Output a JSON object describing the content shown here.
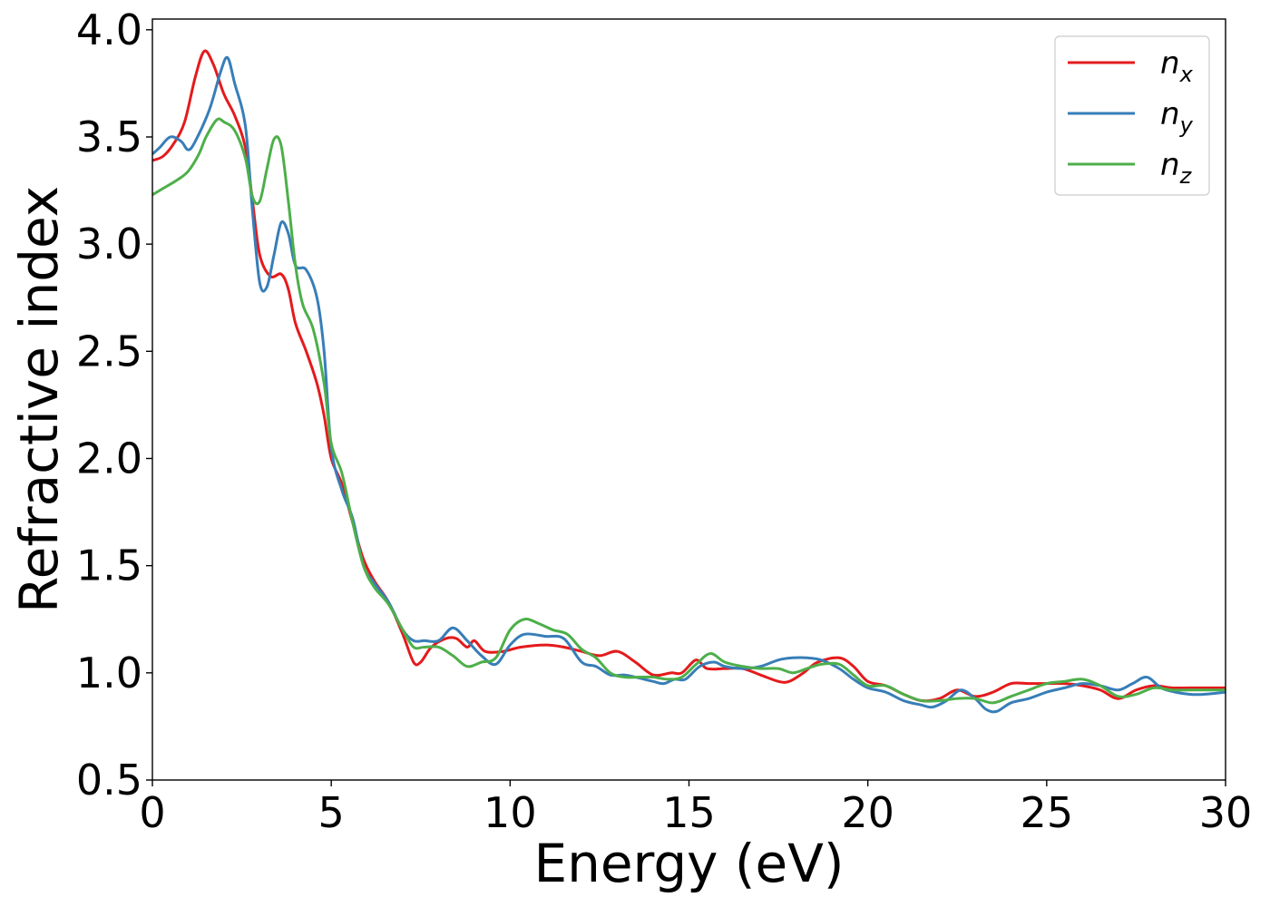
{
  "chart_data": {
    "type": "line",
    "xlabel": "Energy (eV)",
    "ylabel": "Refractive index",
    "xlim": [
      0,
      30
    ],
    "ylim": [
      0.5,
      4.05
    ],
    "xticks": [
      "0",
      "5",
      "10",
      "15",
      "20",
      "25",
      "30"
    ],
    "yticks": [
      "0.5",
      "1.0",
      "1.5",
      "2.0",
      "2.5",
      "3.0",
      "3.5",
      "4.0"
    ],
    "grid": false,
    "legend_position": "top-right",
    "series": [
      {
        "name": "n",
        "subscript": "x",
        "color": "#e41a1c",
        "points": [
          [
            0,
            3.39
          ],
          [
            0.3,
            3.41
          ],
          [
            0.6,
            3.47
          ],
          [
            0.9,
            3.57
          ],
          [
            1.2,
            3.78
          ],
          [
            1.45,
            3.9
          ],
          [
            1.7,
            3.84
          ],
          [
            2.0,
            3.7
          ],
          [
            2.3,
            3.6
          ],
          [
            2.6,
            3.45
          ],
          [
            2.8,
            3.2
          ],
          [
            3.0,
            2.95
          ],
          [
            3.3,
            2.85
          ],
          [
            3.6,
            2.86
          ],
          [
            3.8,
            2.79
          ],
          [
            4.0,
            2.63
          ],
          [
            4.3,
            2.5
          ],
          [
            4.6,
            2.35
          ],
          [
            4.8,
            2.2
          ],
          [
            5.0,
            2.0
          ],
          [
            5.3,
            1.88
          ],
          [
            5.6,
            1.7
          ],
          [
            5.9,
            1.53
          ],
          [
            6.2,
            1.43
          ],
          [
            6.6,
            1.33
          ],
          [
            7.0,
            1.18
          ],
          [
            7.3,
            1.05
          ],
          [
            7.5,
            1.05
          ],
          [
            7.8,
            1.12
          ],
          [
            8.2,
            1.16
          ],
          [
            8.5,
            1.16
          ],
          [
            8.8,
            1.12
          ],
          [
            9.0,
            1.15
          ],
          [
            9.3,
            1.1
          ],
          [
            9.8,
            1.1
          ],
          [
            10.3,
            1.12
          ],
          [
            11.0,
            1.13
          ],
          [
            11.5,
            1.12
          ],
          [
            12.0,
            1.1
          ],
          [
            12.5,
            1.08
          ],
          [
            13.0,
            1.1
          ],
          [
            13.5,
            1.05
          ],
          [
            14.0,
            0.99
          ],
          [
            14.5,
            1.0
          ],
          [
            14.8,
            1.0
          ],
          [
            15.2,
            1.06
          ],
          [
            15.5,
            1.02
          ],
          [
            16.0,
            1.02
          ],
          [
            16.5,
            1.02
          ],
          [
            17.0,
            0.99
          ],
          [
            17.5,
            0.96
          ],
          [
            17.8,
            0.96
          ],
          [
            18.2,
            1.0
          ],
          [
            18.6,
            1.05
          ],
          [
            19.2,
            1.07
          ],
          [
            19.6,
            1.03
          ],
          [
            20.0,
            0.96
          ],
          [
            20.5,
            0.94
          ],
          [
            21.0,
            0.9
          ],
          [
            21.5,
            0.87
          ],
          [
            22.0,
            0.88
          ],
          [
            22.5,
            0.92
          ],
          [
            23.0,
            0.89
          ],
          [
            23.5,
            0.91
          ],
          [
            24.0,
            0.95
          ],
          [
            24.5,
            0.95
          ],
          [
            25.0,
            0.95
          ],
          [
            25.5,
            0.95
          ],
          [
            26.0,
            0.94
          ],
          [
            26.5,
            0.92
          ],
          [
            27.0,
            0.88
          ],
          [
            27.5,
            0.92
          ],
          [
            28.0,
            0.94
          ],
          [
            28.5,
            0.93
          ],
          [
            29.0,
            0.93
          ],
          [
            29.5,
            0.93
          ],
          [
            30.0,
            0.93
          ]
        ]
      },
      {
        "name": "n",
        "subscript": "y",
        "color": "#377eb8",
        "points": [
          [
            0,
            3.42
          ],
          [
            0.2,
            3.45
          ],
          [
            0.5,
            3.5
          ],
          [
            0.8,
            3.48
          ],
          [
            1.0,
            3.44
          ],
          [
            1.2,
            3.48
          ],
          [
            1.6,
            3.63
          ],
          [
            1.9,
            3.8
          ],
          [
            2.1,
            3.87
          ],
          [
            2.3,
            3.75
          ],
          [
            2.6,
            3.55
          ],
          [
            2.8,
            3.15
          ],
          [
            3.0,
            2.82
          ],
          [
            3.2,
            2.8
          ],
          [
            3.4,
            2.95
          ],
          [
            3.6,
            3.1
          ],
          [
            3.8,
            3.05
          ],
          [
            4.0,
            2.9
          ],
          [
            4.3,
            2.88
          ],
          [
            4.6,
            2.75
          ],
          [
            4.8,
            2.5
          ],
          [
            5.0,
            2.05
          ],
          [
            5.3,
            1.85
          ],
          [
            5.6,
            1.72
          ],
          [
            5.9,
            1.5
          ],
          [
            6.2,
            1.42
          ],
          [
            6.6,
            1.33
          ],
          [
            7.0,
            1.2
          ],
          [
            7.3,
            1.15
          ],
          [
            7.6,
            1.15
          ],
          [
            8.0,
            1.15
          ],
          [
            8.4,
            1.21
          ],
          [
            8.8,
            1.15
          ],
          [
            9.2,
            1.08
          ],
          [
            9.6,
            1.04
          ],
          [
            10.0,
            1.13
          ],
          [
            10.4,
            1.18
          ],
          [
            11.0,
            1.17
          ],
          [
            11.5,
            1.16
          ],
          [
            12.0,
            1.05
          ],
          [
            12.4,
            1.03
          ],
          [
            12.8,
            0.99
          ],
          [
            13.2,
            0.99
          ],
          [
            13.5,
            0.98
          ],
          [
            14.0,
            0.96
          ],
          [
            14.3,
            0.95
          ],
          [
            14.6,
            0.97
          ],
          [
            14.9,
            0.97
          ],
          [
            15.3,
            1.03
          ],
          [
            15.7,
            1.05
          ],
          [
            16.0,
            1.03
          ],
          [
            16.5,
            1.02
          ],
          [
            17.0,
            1.03
          ],
          [
            17.5,
            1.06
          ],
          [
            17.9,
            1.07
          ],
          [
            18.3,
            1.07
          ],
          [
            18.7,
            1.06
          ],
          [
            19.2,
            1.02
          ],
          [
            19.6,
            0.97
          ],
          [
            20.0,
            0.93
          ],
          [
            20.5,
            0.91
          ],
          [
            21.0,
            0.87
          ],
          [
            21.5,
            0.85
          ],
          [
            21.8,
            0.84
          ],
          [
            22.2,
            0.87
          ],
          [
            22.6,
            0.92
          ],
          [
            23.0,
            0.88
          ],
          [
            23.3,
            0.83
          ],
          [
            23.6,
            0.82
          ],
          [
            24.0,
            0.86
          ],
          [
            24.5,
            0.88
          ],
          [
            25.0,
            0.91
          ],
          [
            25.5,
            0.93
          ],
          [
            26.0,
            0.95
          ],
          [
            26.5,
            0.94
          ],
          [
            27.0,
            0.92
          ],
          [
            27.4,
            0.95
          ],
          [
            27.8,
            0.98
          ],
          [
            28.2,
            0.93
          ],
          [
            28.6,
            0.91
          ],
          [
            29.0,
            0.9
          ],
          [
            29.4,
            0.9
          ],
          [
            30.0,
            0.91
          ]
        ]
      },
      {
        "name": "n",
        "subscript": "z",
        "color": "#4daf4a",
        "points": [
          [
            0,
            3.23
          ],
          [
            0.3,
            3.26
          ],
          [
            0.7,
            3.3
          ],
          [
            1.0,
            3.34
          ],
          [
            1.3,
            3.42
          ],
          [
            1.5,
            3.5
          ],
          [
            1.8,
            3.58
          ],
          [
            2.0,
            3.57
          ],
          [
            2.3,
            3.53
          ],
          [
            2.6,
            3.4
          ],
          [
            2.8,
            3.22
          ],
          [
            3.0,
            3.2
          ],
          [
            3.2,
            3.35
          ],
          [
            3.4,
            3.49
          ],
          [
            3.6,
            3.46
          ],
          [
            3.8,
            3.2
          ],
          [
            4.0,
            2.9
          ],
          [
            4.2,
            2.72
          ],
          [
            4.5,
            2.6
          ],
          [
            4.8,
            2.35
          ],
          [
            5.0,
            2.07
          ],
          [
            5.3,
            1.93
          ],
          [
            5.6,
            1.7
          ],
          [
            5.9,
            1.5
          ],
          [
            6.2,
            1.4
          ],
          [
            6.6,
            1.32
          ],
          [
            7.0,
            1.2
          ],
          [
            7.3,
            1.12
          ],
          [
            7.6,
            1.12
          ],
          [
            8.0,
            1.12
          ],
          [
            8.4,
            1.08
          ],
          [
            8.8,
            1.03
          ],
          [
            9.2,
            1.05
          ],
          [
            9.6,
            1.07
          ],
          [
            10.0,
            1.2
          ],
          [
            10.4,
            1.25
          ],
          [
            10.8,
            1.23
          ],
          [
            11.2,
            1.2
          ],
          [
            11.6,
            1.18
          ],
          [
            12.0,
            1.11
          ],
          [
            12.4,
            1.07
          ],
          [
            12.8,
            1.0
          ],
          [
            13.2,
            0.98
          ],
          [
            13.6,
            0.98
          ],
          [
            14.0,
            0.98
          ],
          [
            14.4,
            0.97
          ],
          [
            14.8,
            0.98
          ],
          [
            15.2,
            1.04
          ],
          [
            15.6,
            1.09
          ],
          [
            16.0,
            1.05
          ],
          [
            16.5,
            1.03
          ],
          [
            17.0,
            1.02
          ],
          [
            17.5,
            1.02
          ],
          [
            17.9,
            1.0
          ],
          [
            18.3,
            1.02
          ],
          [
            18.7,
            1.04
          ],
          [
            19.2,
            1.04
          ],
          [
            19.6,
            0.99
          ],
          [
            20.0,
            0.94
          ],
          [
            20.5,
            0.94
          ],
          [
            21.0,
            0.9
          ],
          [
            21.5,
            0.87
          ],
          [
            22.0,
            0.87
          ],
          [
            22.5,
            0.88
          ],
          [
            23.0,
            0.88
          ],
          [
            23.5,
            0.86
          ],
          [
            24.0,
            0.89
          ],
          [
            24.5,
            0.92
          ],
          [
            25.0,
            0.95
          ],
          [
            25.5,
            0.96
          ],
          [
            26.0,
            0.97
          ],
          [
            26.5,
            0.94
          ],
          [
            27.0,
            0.89
          ],
          [
            27.5,
            0.9
          ],
          [
            28.0,
            0.93
          ],
          [
            28.5,
            0.92
          ],
          [
            29.0,
            0.92
          ],
          [
            29.5,
            0.92
          ],
          [
            30.0,
            0.92
          ]
        ]
      }
    ]
  }
}
